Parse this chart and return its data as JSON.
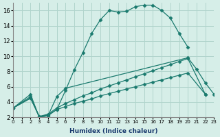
{
  "xlabel": "Humidex (Indice chaleur)",
  "background_color": "#d6eee8",
  "line_color": "#1a7a6e",
  "grid_color": "#b0d4cc",
  "xlim": [
    0,
    23
  ],
  "ylim": [
    2,
    17
  ],
  "lines": [
    {
      "x": [
        0,
        2,
        3,
        4,
        5,
        6,
        7,
        8,
        9,
        10,
        11,
        12,
        13,
        14,
        15,
        16,
        17,
        18,
        19,
        20
      ],
      "y": [
        3.2,
        5.0,
        2.0,
        2.2,
        3.0,
        5.5,
        8.2,
        10.5,
        13.0,
        14.8,
        16.0,
        15.8,
        15.9,
        16.5,
        16.7,
        16.7,
        16.0,
        15.0,
        13.0,
        11.2
      ]
    },
    {
      "x": [
        0,
        2,
        3,
        4,
        5,
        6,
        20,
        21,
        22,
        23
      ],
      "y": [
        3.2,
        4.7,
        2.0,
        2.2,
        4.7,
        5.8,
        9.8,
        8.3,
        6.5,
        5.0
      ]
    },
    {
      "x": [
        0,
        2,
        3,
        4,
        5,
        6,
        7,
        8,
        9,
        10,
        11,
        12,
        13,
        14,
        15,
        16,
        17,
        18,
        19,
        20,
        22
      ],
      "y": [
        3.2,
        4.5,
        2.1,
        2.4,
        3.2,
        3.8,
        4.3,
        4.8,
        5.2,
        5.7,
        6.1,
        6.5,
        6.9,
        7.3,
        7.7,
        8.1,
        8.5,
        8.9,
        9.3,
        9.7,
        5.0
      ]
    },
    {
      "x": [
        0,
        2,
        3,
        4,
        5,
        6,
        7,
        8,
        9,
        10,
        11,
        12,
        13,
        14,
        15,
        16,
        17,
        18,
        19,
        20,
        22
      ],
      "y": [
        3.2,
        4.5,
        2.1,
        2.3,
        3.0,
        3.4,
        3.8,
        4.1,
        4.4,
        4.8,
        5.1,
        5.4,
        5.7,
        6.0,
        6.3,
        6.6,
        6.9,
        7.2,
        7.5,
        7.8,
        5.0
      ]
    }
  ],
  "yticks": [
    2,
    4,
    6,
    8,
    10,
    12,
    14,
    16
  ],
  "xticks": [
    0,
    1,
    2,
    3,
    4,
    5,
    6,
    7,
    8,
    9,
    10,
    11,
    12,
    13,
    14,
    15,
    16,
    17,
    18,
    19,
    20,
    21,
    22,
    23
  ]
}
